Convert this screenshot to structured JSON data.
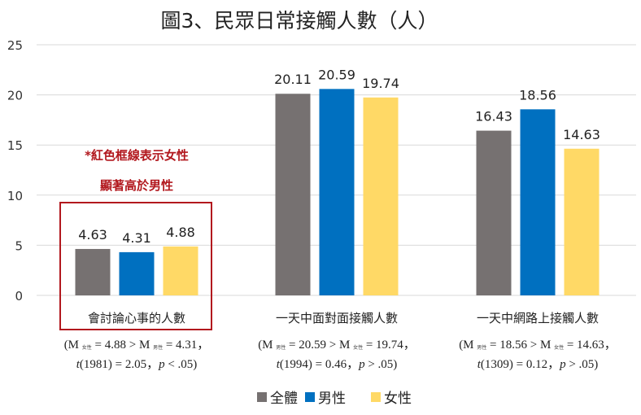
{
  "chart_data": {
    "type": "bar",
    "title": "圖3、民眾日常接觸人數（人）",
    "xlabel": "",
    "ylabel": "",
    "ylim": [
      0,
      25
    ],
    "yticks": [
      0,
      5,
      10,
      15,
      20,
      25
    ],
    "grid": true,
    "legend_position": "bottom",
    "categories": [
      "會討論心事的人數",
      "一天中面對面接觸人數",
      "一天中網路上接觸人數"
    ],
    "series": [
      {
        "name": "全體",
        "color": "#767171",
        "values": [
          4.63,
          20.11,
          16.43
        ]
      },
      {
        "name": "男性",
        "color": "#0070c0",
        "values": [
          4.31,
          20.59,
          18.56
        ]
      },
      {
        "name": "女性",
        "color": "#ffd966",
        "values": [
          4.88,
          19.74,
          14.63
        ]
      }
    ],
    "data_labels": [
      [
        "4.63",
        "4.31",
        "4.88"
      ],
      [
        "20.11",
        "20.59",
        "19.74"
      ],
      [
        "16.43",
        "18.56",
        "14.63"
      ]
    ],
    "stats": [
      {
        "m1_label": "女性",
        "m1_value": "4.88",
        "m2_label": "男性",
        "m2_value": "4.31",
        "df": "1981",
        "t": "2.05",
        "p_op": "<",
        "p": ".05"
      },
      {
        "m1_label": "男性",
        "m1_value": "20.59",
        "m2_label": "女性",
        "m2_value": "19.74",
        "df": "1994",
        "t": "0.46",
        "p_op": ">",
        "p": ".05"
      },
      {
        "m1_label": "男性",
        "m1_value": "18.56",
        "m2_label": "女性",
        "m2_value": "14.63",
        "df": "1309",
        "t": "0.12",
        "p_op": ">",
        "p": ".05"
      }
    ],
    "annotation": {
      "lines": [
        "*紅色框線表示女性",
        "顯著高於男性"
      ],
      "color": "#b2181e",
      "highlighted_category": "會討論心事的人數"
    }
  }
}
